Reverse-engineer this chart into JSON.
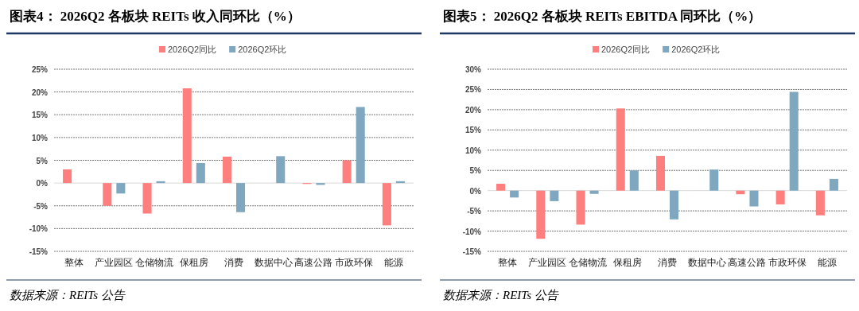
{
  "chart_data": [
    {
      "type": "bar",
      "title": "图表4：  2026Q2 各板块 REITs 收入同环比（%）",
      "categories": [
        "整体",
        "产业园区",
        "仓储物流",
        "保租房",
        "消费",
        "数据中心",
        "高速公路",
        "市政环保",
        "能源"
      ],
      "series": [
        {
          "name": "2026Q2同比",
          "color": "#ff7f7f",
          "values": [
            3.0,
            -5.0,
            -6.7,
            20.8,
            5.8,
            0,
            -0.2,
            5.0,
            -9.3
          ]
        },
        {
          "name": "2026Q2环比",
          "color": "#7fa7c0",
          "values": [
            0,
            -2.3,
            0.4,
            4.4,
            -6.4,
            5.9,
            -0.4,
            16.7,
            0.4
          ]
        }
      ],
      "ylim": [
        -15,
        25
      ],
      "yticks": [
        {
          "value": -15,
          "label": "-15%"
        },
        {
          "value": -10,
          "label": "-10%"
        },
        {
          "value": -5,
          "label": "-5%"
        },
        {
          "value": 0,
          "label": "0%"
        },
        {
          "value": 5,
          "label": "5%"
        },
        {
          "value": 10,
          "label": "10%"
        },
        {
          "value": 15,
          "label": "15%"
        },
        {
          "value": 20,
          "label": "20%"
        },
        {
          "value": 25,
          "label": "25%"
        }
      ],
      "grid": "y",
      "legend": "top",
      "annotations": [
        "数据来源：REITs 公告"
      ]
    },
    {
      "type": "bar",
      "title": "图表5：  2026Q2 各板块 REITs EBITDA 同环比（%）",
      "categories": [
        "整体",
        "产业园区",
        "仓储物流",
        "保租房",
        "消费",
        "数据中心",
        "高速公路",
        "市政环保",
        "能源"
      ],
      "series": [
        {
          "name": "2026Q2同比",
          "color": "#ff7f7f",
          "values": [
            1.7,
            -11.9,
            -8.4,
            20.3,
            8.6,
            0,
            -0.9,
            -3.4,
            -6.1
          ]
        },
        {
          "name": "2026Q2环比",
          "color": "#7fa7c0",
          "values": [
            -1.7,
            -2.6,
            -0.8,
            5.0,
            -7.1,
            5.2,
            -3.9,
            24.4,
            2.9
          ]
        }
      ],
      "ylim": [
        -15,
        30
      ],
      "yticks": [
        {
          "value": -15,
          "label": "-15%"
        },
        {
          "value": -10,
          "label": "-10%"
        },
        {
          "value": -5,
          "label": "-5%"
        },
        {
          "value": 0,
          "label": "0%"
        },
        {
          "value": 5,
          "label": "5%"
        },
        {
          "value": 10,
          "label": "10%"
        },
        {
          "value": 15,
          "label": "15%"
        },
        {
          "value": 20,
          "label": "20%"
        },
        {
          "value": 25,
          "label": "25%"
        },
        {
          "value": 30,
          "label": "30%"
        }
      ],
      "grid": "y",
      "legend": "top",
      "annotations": [
        "数据来源：REITs 公告"
      ]
    }
  ]
}
